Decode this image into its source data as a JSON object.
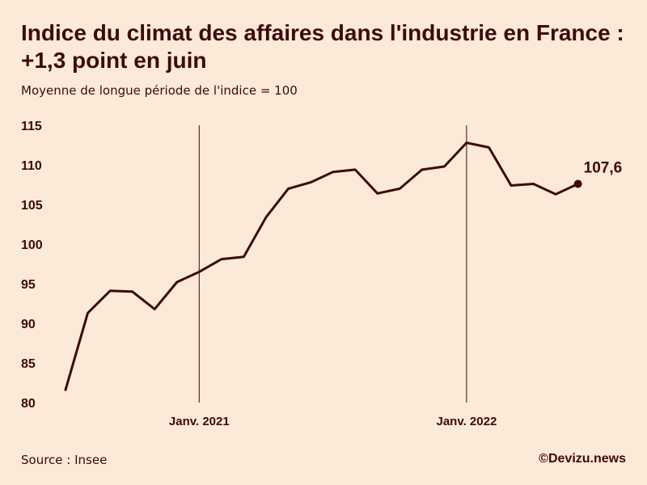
{
  "header": {
    "title": "Indice du climat des affaires dans l'industrie en France : +1,3 point en juin",
    "subtitle": "Moyenne de longue période de l'indice = 100"
  },
  "footer": {
    "source": "Source : Insee",
    "credit": "©Devizu.news"
  },
  "colors": {
    "background": "#fde9d7",
    "line": "#3d0a0d",
    "text": "#3d0a0d"
  },
  "chart_data": {
    "type": "line",
    "title": "Indice du climat des affaires dans l'industrie en France : +1,3 point en juin",
    "subtitle": "Moyenne de longue période de l'indice = 100",
    "xlabel": "",
    "ylabel": "",
    "ylim": [
      80,
      115
    ],
    "yticks": [
      "80",
      "85",
      "90",
      "95",
      "100",
      "105",
      "110",
      "115"
    ],
    "x_ticks": [
      "Janv. 2021",
      "Janv. 2022"
    ],
    "grid": false,
    "series": [
      {
        "values": [
          81.6,
          91.3,
          94.1,
          94.0,
          91.8,
          95.2,
          96.5,
          98.1,
          98.4,
          103.4,
          107.0,
          107.8,
          109.1,
          109.4,
          106.4,
          107.0,
          109.4,
          109.8,
          112.8,
          112.2,
          107.4,
          107.6,
          106.3,
          107.6
        ]
      }
    ],
    "last_value_label": "107,6"
  }
}
